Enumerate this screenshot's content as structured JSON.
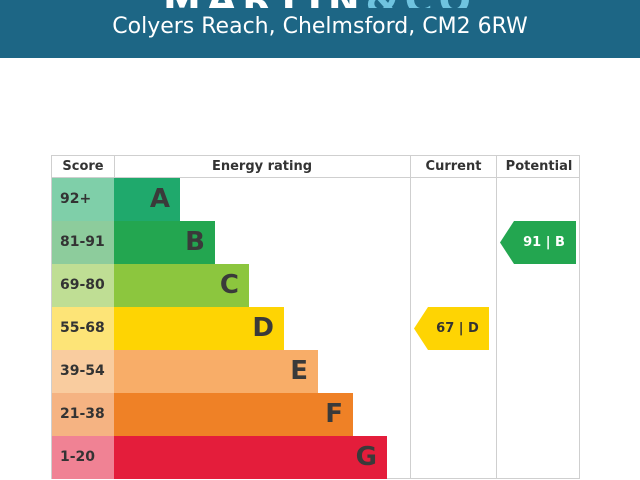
{
  "header": {
    "brand_main": "MARTIN",
    "brand_accent": "&CO",
    "address": "Colyers Reach, Chelmsford, CM2 6RW"
  },
  "epc": {
    "headers": {
      "score": "Score",
      "rating": "Energy rating",
      "current": "Current",
      "potential": "Potential"
    },
    "bands": [
      {
        "score": "92+",
        "letter": "A",
        "color": "#1fa96c",
        "score_bg": "#7fcfa9"
      },
      {
        "score": "81-91",
        "letter": "B",
        "color": "#23a650",
        "score_bg": "#8dcc9c"
      },
      {
        "score": "69-80",
        "letter": "C",
        "color": "#8cc63e",
        "score_bg": "#bfde94"
      },
      {
        "score": "55-68",
        "letter": "D",
        "color": "#fed403",
        "score_bg": "#fde477"
      },
      {
        "score": "39-54",
        "letter": "E",
        "color": "#f8ad68",
        "score_bg": "#f9cc9f"
      },
      {
        "score": "21-38",
        "letter": "F",
        "color": "#ef8126",
        "score_bg": "#f5b382"
      },
      {
        "score": "1-20",
        "letter": "G",
        "color": "#e41d3b",
        "score_bg": "#f08294"
      }
    ],
    "current": {
      "label": "67 | D",
      "band": "D",
      "color": "#fed403"
    },
    "potential": {
      "label": "91 | B",
      "band": "B",
      "color": "#23a650"
    }
  }
}
